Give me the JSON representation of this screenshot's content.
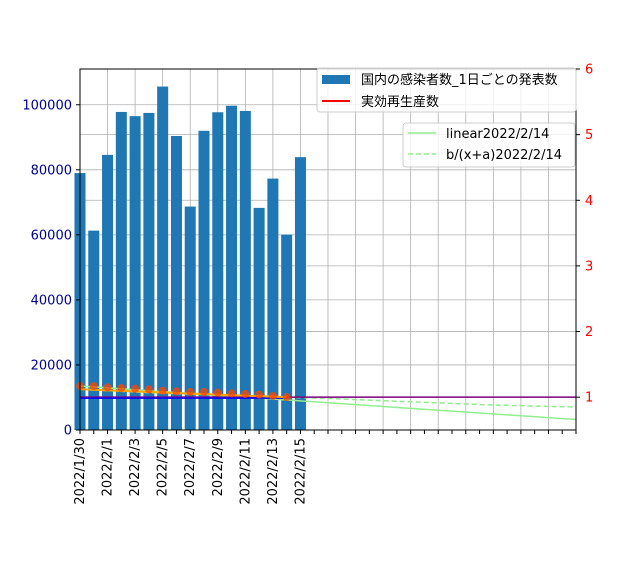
{
  "chart_data": {
    "type": "bar",
    "title": "",
    "xlabel": "",
    "ylabel_left": "",
    "ylabel_right": "",
    "grid": true,
    "left_axis": {
      "ylim": [
        0,
        111000
      ],
      "ticks": [
        0,
        20000,
        40000,
        60000,
        80000,
        100000
      ],
      "tick_color": "#00008b"
    },
    "right_axis": {
      "ylim": [
        0.5,
        6.0
      ],
      "ticks": [
        1,
        2,
        3,
        4,
        5,
        6
      ],
      "tick_color": "#ff0000"
    },
    "x_tick_labels": [
      "2022/1/30",
      "2022/2/1",
      "2022/2/3",
      "2022/2/5",
      "2022/2/7",
      "2022/2/9",
      "2022/2/11",
      "2022/2/13",
      "2022/2/15"
    ],
    "bars": {
      "name": "国内の感染者数_1日ごとの発表数",
      "color": "#1f77b4",
      "categories": [
        "2022/1/30",
        "2022/1/31",
        "2022/2/1",
        "2022/2/2",
        "2022/2/3",
        "2022/2/4",
        "2022/2/5",
        "2022/2/6",
        "2022/2/7",
        "2022/2/8",
        "2022/2/9",
        "2022/2/10",
        "2022/2/11",
        "2022/2/12",
        "2022/2/13",
        "2022/2/14",
        "2022/2/15"
      ],
      "values": [
        79000,
        61300,
        84600,
        97800,
        96500,
        97500,
        105600,
        90400,
        68700,
        92000,
        97700,
        99700,
        98100,
        68300,
        77300,
        60100,
        83900
      ]
    },
    "rt_line": {
      "name": "実効再生産数",
      "color": "#ff0000",
      "level": 1.0
    },
    "rt_points": {
      "color": "#ff4500",
      "values": [
        1.17,
        1.17,
        1.15,
        1.14,
        1.13,
        1.12,
        1.1,
        1.09,
        1.08,
        1.08,
        1.07,
        1.06,
        1.05,
        1.04,
        1.02,
        1.0
      ]
    },
    "fit_linear": {
      "name": "linear2022/2/14",
      "color": "#90ee90",
      "points": [
        [
          0,
          1.17
        ],
        [
          36,
          0.66
        ]
      ]
    },
    "fit_reciprocal": {
      "name": "b/(x+a)2022/2/14",
      "color": "#90ee90",
      "points": [
        [
          0,
          1.12
        ],
        [
          6,
          1.06
        ],
        [
          12,
          1.02
        ],
        [
          18,
          0.98
        ],
        [
          24,
          0.93
        ],
        [
          30,
          0.88
        ],
        [
          36,
          0.85
        ]
      ]
    },
    "trend_orange": {
      "color": "#ffa500",
      "points": [
        [
          0,
          1.12
        ],
        [
          15,
          1.0
        ]
      ]
    },
    "baseline_purple": {
      "color": "#800080",
      "level": 1.0
    },
    "baseline_blue": {
      "color": "#0000ff",
      "level": 1.0,
      "extent": [
        0,
        15
      ]
    },
    "legend_bars_rt": {
      "placement": "top-right"
    },
    "legend_fits": {
      "placement": "upper-right"
    }
  }
}
